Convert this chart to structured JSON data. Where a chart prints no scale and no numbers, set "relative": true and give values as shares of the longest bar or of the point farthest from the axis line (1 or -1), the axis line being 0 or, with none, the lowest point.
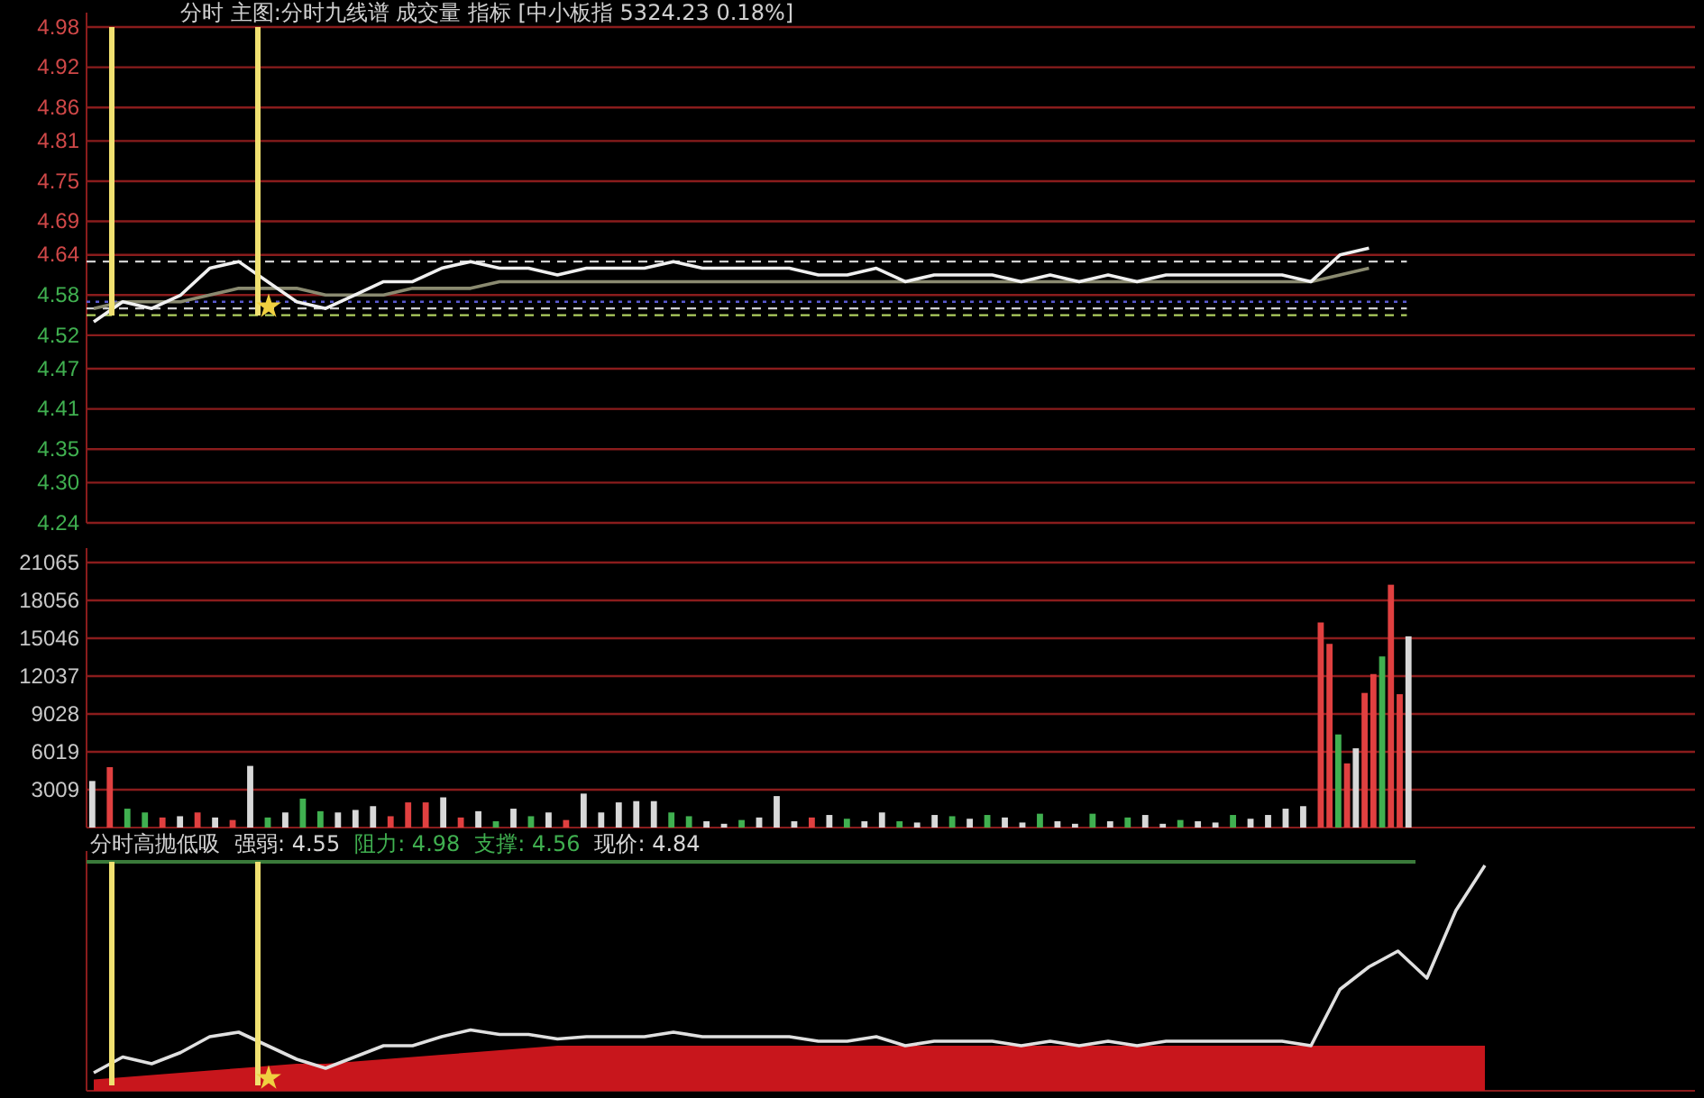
{
  "chart_data": [
    {
      "type": "line",
      "title": "分时 主图:分时九线谱 成交量 指标 [中小板指 5324.23 0.18%]",
      "categories": [
        null,
        null,
        null,
        null,
        null,
        null,
        null,
        null,
        null,
        null,
        null,
        null,
        null,
        null,
        null,
        null,
        null,
        null,
        null,
        null,
        null,
        null,
        null,
        null,
        null,
        null,
        null,
        null,
        null,
        null,
        null,
        null,
        null,
        null,
        null,
        null,
        null,
        null,
        null,
        null,
        null,
        null,
        null,
        null,
        null,
        null,
        null,
        null,
        null,
        null,
        null,
        null,
        null,
        null,
        null,
        null
      ],
      "series": [
        {
          "color": "#8a8a70",
          "values": [
            4.56,
            4.57,
            4.57,
            4.57,
            4.58,
            4.59,
            4.59,
            4.59,
            4.58,
            4.58,
            4.58,
            4.59,
            4.59,
            4.59,
            4.6,
            4.6,
            4.6,
            4.6,
            4.6,
            4.6,
            4.6,
            4.6,
            4.6,
            4.6,
            4.6,
            4.6,
            4.6,
            4.6,
            4.6,
            4.6,
            4.6,
            4.6,
            4.6,
            4.6,
            4.6,
            4.6,
            4.6,
            4.6,
            4.6,
            4.6,
            4.6,
            4.6,
            4.6,
            4.61,
            4.62,
            null,
            null,
            null,
            null,
            null,
            null,
            null,
            null,
            null,
            null,
            null
          ]
        },
        {
          "color": "#f0f0f0",
          "values": [
            4.54,
            4.57,
            4.56,
            4.58,
            4.62,
            4.63,
            4.6,
            4.57,
            4.56,
            4.58,
            4.6,
            4.6,
            4.62,
            4.63,
            4.62,
            4.62,
            4.61,
            4.62,
            4.62,
            4.62,
            4.63,
            4.62,
            4.62,
            4.62,
            4.62,
            4.61,
            4.61,
            4.62,
            4.6,
            4.61,
            4.61,
            4.61,
            4.6,
            4.61,
            4.6,
            4.61,
            4.6,
            4.61,
            4.61,
            4.61,
            4.61,
            4.61,
            4.6,
            4.64,
            4.65,
            null,
            null,
            null,
            null,
            null,
            null,
            null,
            null,
            null,
            null,
            null
          ]
        }
      ],
      "ylim": [
        4.24,
        4.98
      ],
      "yticks": [
        4.24,
        {
          "value": 4.3,
          "label": "4.30"
        },
        4.35,
        4.41,
        4.47,
        4.52,
        4.58,
        4.64,
        4.69,
        4.75,
        4.81,
        4.86,
        4.92,
        4.98
      ],
      "ref_lines": [
        {
          "axis": "y",
          "value": 4.63,
          "color": "#d0d0d0",
          "line_style": "dashed"
        },
        {
          "axis": "y",
          "value": 4.57,
          "color": "#5a5ad0",
          "line_style": "dotted"
        },
        {
          "axis": "y",
          "value": 4.56,
          "color": "#d0d0d0",
          "line_style": "dashed"
        },
        {
          "axis": "y",
          "value": 4.55,
          "color": "#b0d060",
          "line_style": "dashed"
        }
      ],
      "grid": "y",
      "tick_labels": "y"
    },
    {
      "type": "bar",
      "categories": [
        null,
        null,
        null,
        null,
        null,
        null,
        null,
        null,
        null,
        null,
        null,
        null,
        null,
        null,
        null,
        null,
        null,
        null,
        null,
        null,
        null,
        null,
        null,
        null,
        null,
        null,
        null,
        null,
        null,
        null,
        null,
        null,
        null,
        null,
        null,
        null,
        null,
        null,
        null,
        null,
        null,
        null,
        null,
        null,
        null,
        null,
        null,
        null,
        null,
        null,
        null,
        null,
        null,
        null,
        null,
        null,
        null,
        null,
        null,
        null,
        null,
        null,
        null,
        null,
        null,
        null,
        null,
        null,
        null,
        null,
        null,
        null,
        null,
        null,
        null,
        null,
        null,
        null,
        null,
        null,
        null,
        null,
        null,
        null,
        null,
        null,
        null,
        null,
        null,
        null,
        null,
        null,
        null,
        null,
        null,
        null,
        null,
        null,
        null,
        null,
        null,
        null,
        null,
        null,
        null,
        null,
        null,
        null,
        null,
        null,
        null,
        null,
        null,
        null,
        null,
        null,
        null,
        null,
        null,
        null,
        null,
        null,
        null,
        null,
        null,
        null,
        null,
        null,
        null,
        null,
        null,
        null,
        null,
        null,
        null,
        null,
        null,
        null,
        null,
        null,
        null,
        null,
        null,
        null,
        null,
        null,
        null,
        null,
        null,
        null,
        null,
        null,
        null,
        null,
        null,
        null,
        null,
        null,
        null,
        null,
        null,
        null,
        null,
        null,
        null,
        null,
        null,
        null,
        null,
        null,
        null,
        null,
        null,
        null,
        null,
        null,
        null,
        null,
        null,
        null,
        null,
        null,
        null
      ],
      "values": [
        3700,
        null,
        4800,
        null,
        1500,
        null,
        1200,
        null,
        800,
        null,
        900,
        null,
        1200,
        null,
        800,
        null,
        600,
        null,
        4900,
        null,
        800,
        null,
        1200,
        null,
        2300,
        null,
        1300,
        null,
        1200,
        null,
        1400,
        null,
        1700,
        null,
        900,
        null,
        2000,
        null,
        2000,
        null,
        2400,
        null,
        800,
        null,
        1300,
        null,
        500,
        null,
        1500,
        null,
        900,
        null,
        1200,
        null,
        600,
        null,
        2700,
        null,
        1200,
        null,
        2000,
        null,
        2100,
        null,
        2100,
        null,
        1200,
        null,
        900,
        null,
        500,
        null,
        300,
        null,
        600,
        null,
        800,
        null,
        2500,
        null,
        500,
        null,
        800,
        null,
        1000,
        null,
        700,
        null,
        500,
        null,
        1200,
        null,
        500,
        null,
        400,
        null,
        1000,
        null,
        900,
        null,
        700,
        null,
        1000,
        null,
        800,
        null,
        400,
        null,
        1100,
        null,
        500,
        null,
        300,
        null,
        1100,
        null,
        500,
        null,
        800,
        null,
        1000,
        null,
        300,
        null,
        600,
        null,
        500,
        null,
        400,
        null,
        1000,
        null,
        700,
        null,
        1000,
        null,
        1500,
        null,
        1700,
        null,
        16300,
        14600,
        7400,
        5100,
        6300,
        10700,
        12200,
        13600,
        19300,
        10600,
        15200,
        null,
        null,
        null,
        null,
        null,
        null,
        null,
        null,
        null,
        null,
        null,
        null,
        null,
        null,
        null,
        null,
        null,
        null,
        null,
        null,
        null,
        null,
        null,
        null,
        null,
        null,
        null,
        null,
        null,
        null,
        null,
        null
      ],
      "colors": [
        "#d8d8d8",
        null,
        "#e04040",
        null,
        "#40b050",
        null,
        "#40b050",
        null,
        "#e04040",
        null,
        "#d8d8d8",
        null,
        "#e04040",
        null,
        "#d8d8d8",
        null,
        "#e04040",
        null,
        "#d8d8d8",
        null,
        "#40b050",
        null,
        "#d8d8d8",
        null,
        "#40b050",
        null,
        "#40b050",
        null,
        "#d8d8d8",
        null,
        "#d8d8d8",
        null,
        "#d8d8d8",
        null,
        "#e04040",
        null,
        "#e04040",
        null,
        "#e04040",
        null,
        "#d8d8d8",
        null,
        "#e04040",
        null,
        "#d8d8d8",
        null,
        "#40b050",
        null,
        "#d8d8d8",
        null,
        "#40b050",
        null,
        "#d8d8d8",
        null,
        "#e04040",
        null,
        "#d8d8d8",
        null,
        "#d8d8d8",
        null,
        "#d8d8d8",
        null,
        "#d8d8d8",
        null,
        "#d8d8d8",
        null,
        "#40b050",
        null,
        "#40b050",
        null,
        "#d8d8d8",
        null,
        "#d8d8d8",
        null,
        "#40b050",
        null,
        "#d8d8d8",
        null,
        "#d8d8d8",
        null,
        "#d8d8d8",
        null,
        "#e04040",
        null,
        "#d8d8d8",
        null,
        "#40b050",
        null,
        "#d8d8d8",
        null,
        "#d8d8d8",
        null,
        "#40b050",
        null,
        "#d8d8d8",
        null,
        "#d8d8d8",
        null,
        "#40b050",
        null,
        "#d8d8d8",
        null,
        "#40b050",
        null,
        "#d8d8d8",
        null,
        "#d8d8d8",
        null,
        "#40b050",
        null,
        "#d8d8d8",
        null,
        "#d8d8d8",
        null,
        "#40b050",
        null,
        "#d8d8d8",
        null,
        "#40b050",
        null,
        "#d8d8d8",
        null,
        "#d8d8d8",
        null,
        "#40b050",
        null,
        "#d8d8d8",
        null,
        "#d8d8d8",
        null,
        "#40b050",
        null,
        "#d8d8d8",
        null,
        "#d8d8d8",
        null,
        "#d8d8d8",
        null,
        "#d8d8d8",
        null,
        "#e04040",
        "#e04040",
        "#40b050",
        "#e04040",
        "#d8d8d8",
        "#e04040",
        "#e04040",
        "#40b050",
        "#e04040",
        "#e04040",
        "#d8d8d8",
        null,
        null,
        null,
        null,
        null,
        null,
        null,
        null,
        null,
        null,
        null,
        null,
        null,
        null,
        null,
        null,
        null,
        null,
        null,
        null,
        null,
        null,
        null,
        null,
        null,
        null,
        null,
        null,
        null,
        null,
        null,
        null
      ],
      "ylim": [
        0,
        21065
      ],
      "yticks": [
        3009,
        6019,
        9028,
        12037,
        15046,
        18056,
        21065
      ],
      "grid": "y",
      "tick_labels": "y"
    },
    {
      "type": "line",
      "title": "分时高抛低吸",
      "annotations": [
        "强弱: 4.55",
        "阻力: 4.98",
        "支撑: 4.56",
        "现价: 4.84"
      ],
      "categories": [
        null,
        null,
        null,
        null,
        null,
        null,
        null,
        null,
        null,
        null,
        null,
        null,
        null,
        null,
        null,
        null,
        null,
        null,
        null,
        null,
        null,
        null,
        null,
        null,
        null,
        null,
        null,
        null,
        null,
        null,
        null,
        null,
        null,
        null,
        null,
        null,
        null,
        null,
        null,
        null,
        null,
        null,
        null,
        null,
        null,
        null,
        null,
        null,
        null,
        null,
        null,
        null,
        null,
        null,
        null,
        null
      ],
      "relative": true,
      "series": [
        {
          "type": "area",
          "color": "#c8161c",
          "values": [
            0.05,
            0.06,
            0.07,
            0.08,
            0.09,
            0.1,
            0.11,
            0.12,
            0.12,
            0.13,
            0.14,
            0.15,
            0.16,
            0.17,
            0.18,
            0.19,
            0.2,
            0.2,
            0.2,
            0.2,
            0.2,
            0.2,
            0.2,
            0.2,
            0.2,
            0.2,
            0.2,
            0.2,
            0.2,
            0.2,
            0.2,
            0.2,
            0.2,
            0.2,
            0.2,
            0.2,
            0.2,
            0.2,
            0.2,
            0.2,
            0.2,
            0.2,
            0.2,
            0.2,
            0.2,
            0.2,
            0.2,
            0.2,
            0.2,
            null,
            null,
            null,
            null,
            null,
            null,
            null
          ]
        },
        {
          "color": "#e0e0e0",
          "values": [
            0.08,
            0.15,
            0.12,
            0.17,
            0.24,
            0.26,
            0.2,
            0.14,
            0.1,
            0.15,
            0.2,
            0.2,
            0.24,
            0.27,
            0.25,
            0.25,
            0.23,
            0.24,
            0.24,
            0.24,
            0.26,
            0.24,
            0.24,
            0.24,
            0.24,
            0.22,
            0.22,
            0.24,
            0.2,
            0.22,
            0.22,
            0.22,
            0.2,
            0.22,
            0.2,
            0.22,
            0.2,
            0.22,
            0.22,
            0.22,
            0.22,
            0.22,
            0.2,
            0.45,
            0.55,
            0.62,
            0.5,
            0.8,
            1.0,
            null,
            null,
            null,
            null,
            null,
            null,
            null
          ]
        }
      ],
      "grid": false
    }
  ]
}
